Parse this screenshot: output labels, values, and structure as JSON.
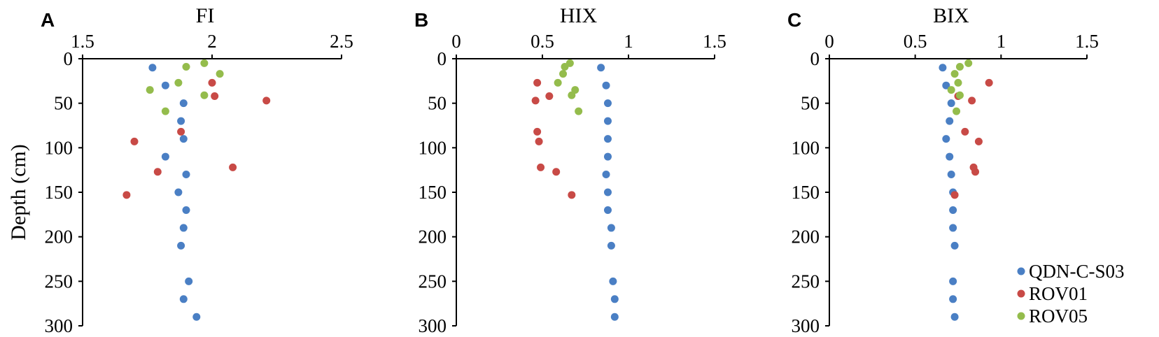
{
  "figure": {
    "ylabel": "Depth (cm)",
    "legend": [
      {
        "name": "QDN-C-S03",
        "color": "#4a7fc4"
      },
      {
        "name": "ROV01",
        "color": "#c84a46"
      },
      {
        "name": "ROV05",
        "color": "#94bc4c"
      }
    ]
  },
  "chart_data": [
    {
      "type": "scatter",
      "panel": "A",
      "title": "FI",
      "xlabel": "FI",
      "ylabel": "Depth (cm)",
      "xlim": [
        1.5,
        2.5
      ],
      "xticks": [
        "1.5",
        "2",
        "2.5"
      ],
      "ylim": [
        0,
        300
      ],
      "yticks": [
        "0",
        "50",
        "100",
        "150",
        "200",
        "250",
        "300"
      ],
      "y_inverted": true,
      "grid": false,
      "series": [
        {
          "name": "QDN-C-S03",
          "color": "#4a7fc4",
          "points": [
            [
              1.77,
              10
            ],
            [
              1.82,
              30
            ],
            [
              1.89,
              50
            ],
            [
              1.88,
              70
            ],
            [
              1.89,
              90
            ],
            [
              1.82,
              110
            ],
            [
              1.9,
              130
            ],
            [
              1.87,
              150
            ],
            [
              1.9,
              170
            ],
            [
              1.89,
              190
            ],
            [
              1.88,
              210
            ],
            [
              1.91,
              250
            ],
            [
              1.89,
              270
            ],
            [
              1.94,
              290
            ]
          ]
        },
        {
          "name": "ROV01",
          "color": "#c84a46",
          "points": [
            [
              2.0,
              27
            ],
            [
              2.01,
              42
            ],
            [
              2.21,
              47
            ],
            [
              1.88,
              82
            ],
            [
              1.7,
              93
            ],
            [
              2.08,
              122
            ],
            [
              1.79,
              127
            ],
            [
              1.67,
              153
            ]
          ]
        },
        {
          "name": "ROV05",
          "color": "#94bc4c",
          "points": [
            [
              1.97,
              5
            ],
            [
              1.9,
              9
            ],
            [
              2.03,
              17
            ],
            [
              1.87,
              27
            ],
            [
              1.76,
              35
            ],
            [
              1.97,
              41
            ],
            [
              1.82,
              59
            ]
          ]
        }
      ]
    },
    {
      "type": "scatter",
      "panel": "B",
      "title": "HIX",
      "xlabel": "HIX",
      "ylabel": "Depth (cm)",
      "xlim": [
        0,
        1.5
      ],
      "xticks": [
        "0",
        "0.5",
        "1",
        "1.5"
      ],
      "ylim": [
        0,
        300
      ],
      "yticks": [
        "0",
        "50",
        "100",
        "150",
        "200",
        "250",
        "300"
      ],
      "y_inverted": true,
      "grid": false,
      "series": [
        {
          "name": "QDN-C-S03",
          "color": "#4a7fc4",
          "points": [
            [
              0.84,
              10
            ],
            [
              0.87,
              30
            ],
            [
              0.88,
              50
            ],
            [
              0.88,
              70
            ],
            [
              0.88,
              90
            ],
            [
              0.88,
              110
            ],
            [
              0.87,
              130
            ],
            [
              0.88,
              150
            ],
            [
              0.88,
              170
            ],
            [
              0.9,
              190
            ],
            [
              0.9,
              210
            ],
            [
              0.91,
              250
            ],
            [
              0.92,
              270
            ],
            [
              0.92,
              290
            ]
          ]
        },
        {
          "name": "ROV01",
          "color": "#c84a46",
          "points": [
            [
              0.47,
              27
            ],
            [
              0.54,
              42
            ],
            [
              0.46,
              47
            ],
            [
              0.47,
              82
            ],
            [
              0.48,
              93
            ],
            [
              0.49,
              122
            ],
            [
              0.58,
              127
            ],
            [
              0.67,
              153
            ]
          ]
        },
        {
          "name": "ROV05",
          "color": "#94bc4c",
          "points": [
            [
              0.66,
              5
            ],
            [
              0.63,
              9
            ],
            [
              0.62,
              17
            ],
            [
              0.59,
              27
            ],
            [
              0.69,
              35
            ],
            [
              0.67,
              41
            ],
            [
              0.71,
              59
            ]
          ]
        }
      ]
    },
    {
      "type": "scatter",
      "panel": "C",
      "title": "BIX",
      "xlabel": "BIX",
      "ylabel": "Depth (cm)",
      "xlim": [
        0,
        1.5
      ],
      "xticks": [
        "0",
        "0.5",
        "1",
        "1.5"
      ],
      "ylim": [
        0,
        300
      ],
      "yticks": [
        "0",
        "50",
        "100",
        "150",
        "200",
        "250",
        "300"
      ],
      "y_inverted": true,
      "grid": false,
      "legend_position": "lower right",
      "series": [
        {
          "name": "QDN-C-S03",
          "color": "#4a7fc4",
          "points": [
            [
              0.66,
              10
            ],
            [
              0.68,
              30
            ],
            [
              0.71,
              50
            ],
            [
              0.7,
              70
            ],
            [
              0.68,
              90
            ],
            [
              0.7,
              110
            ],
            [
              0.71,
              130
            ],
            [
              0.72,
              150
            ],
            [
              0.72,
              170
            ],
            [
              0.72,
              190
            ],
            [
              0.73,
              210
            ],
            [
              0.72,
              250
            ],
            [
              0.72,
              270
            ],
            [
              0.73,
              290
            ]
          ]
        },
        {
          "name": "ROV01",
          "color": "#c84a46",
          "points": [
            [
              0.93,
              27
            ],
            [
              0.75,
              42
            ],
            [
              0.83,
              47
            ],
            [
              0.79,
              82
            ],
            [
              0.87,
              93
            ],
            [
              0.84,
              122
            ],
            [
              0.85,
              127
            ],
            [
              0.73,
              153
            ]
          ]
        },
        {
          "name": "ROV05",
          "color": "#94bc4c",
          "points": [
            [
              0.81,
              5
            ],
            [
              0.76,
              9
            ],
            [
              0.73,
              17
            ],
            [
              0.75,
              27
            ],
            [
              0.71,
              35
            ],
            [
              0.76,
              41
            ],
            [
              0.74,
              59
            ]
          ]
        }
      ]
    }
  ]
}
